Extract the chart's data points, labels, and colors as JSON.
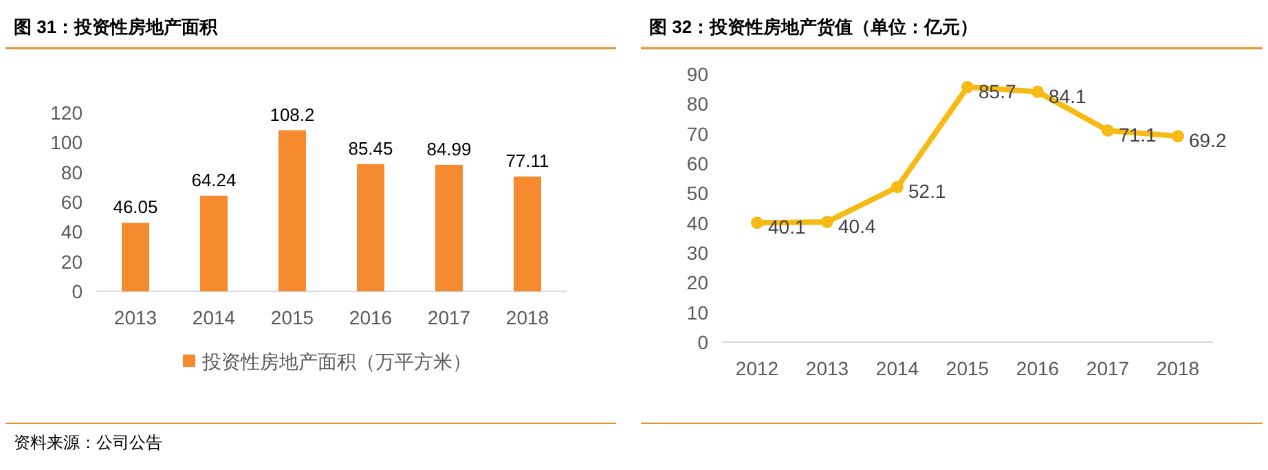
{
  "chart_data": [
    {
      "type": "bar",
      "title": "图 31：投资性房地产面积",
      "categories": [
        "2013",
        "2014",
        "2015",
        "2016",
        "2017",
        "2018"
      ],
      "series": [
        {
          "name": "投资性房地产面积（万平方米）",
          "color": "#f58a2e",
          "values": [
            46.05,
            64.24,
            108.2,
            85.45,
            84.99,
            77.11
          ]
        }
      ],
      "ylim": [
        0,
        120
      ],
      "yticks": [
        0,
        20,
        40,
        60,
        80,
        100,
        120
      ],
      "data_labels": true,
      "legend": "bottom",
      "grid": false,
      "annotations": [
        "资料来源：公司公告"
      ]
    },
    {
      "type": "line",
      "title": "图 32：投资性房地产货值（单位：亿元）",
      "categories": [
        "2012",
        "2013",
        "2014",
        "2015",
        "2016",
        "2017",
        "2018"
      ],
      "series": [
        {
          "color": "#f5bb14",
          "values": [
            40.1,
            40.4,
            52.1,
            85.7,
            84.1,
            71.1,
            69.2
          ]
        }
      ],
      "ylim": [
        0,
        90
      ],
      "yticks": [
        0,
        10,
        20,
        30,
        40,
        50,
        60,
        70,
        80,
        90
      ],
      "data_labels": true,
      "marker": "circle",
      "legend": false,
      "grid": false
    }
  ]
}
